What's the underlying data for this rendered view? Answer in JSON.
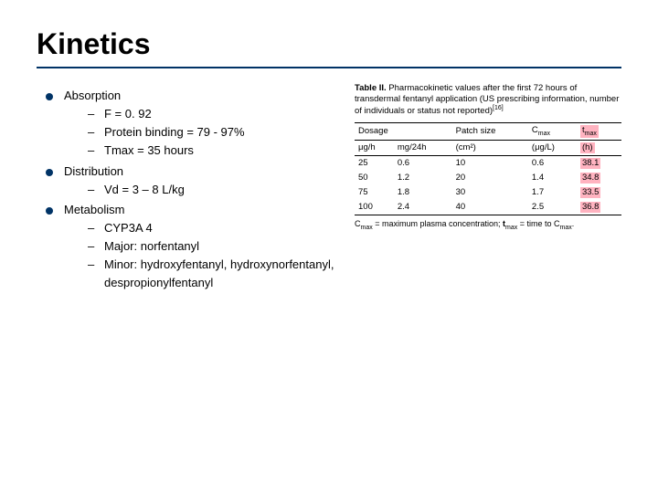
{
  "title": "Kinetics",
  "bullets": {
    "absorption": {
      "label": "Absorption",
      "items": [
        "F = 0. 92",
        "Protein binding = 79 - 97%",
        "Tmax = 35 hours"
      ]
    },
    "distribution": {
      "label": "Distribution",
      "items": [
        "Vd = 3 – 8 L/kg"
      ]
    },
    "metabolism": {
      "label": "Metabolism",
      "items": [
        "CYP3A 4",
        "Major: norfentanyl",
        "Minor: hydroxyfentanyl, hydroxynorfentanyl, despropionylfentanyl"
      ]
    }
  },
  "table": {
    "caption_bold": "Table II.",
    "caption_rest": " Pharmacokinetic values after the first 72 hours of transdermal fentanyl application (US prescribing information, number of individuals or status not reported)",
    "cite": "[16]",
    "headers": {
      "dosage": "Dosage",
      "dosage_u1": "μg/h",
      "dosage_u2": "mg/24h",
      "patch": "Patch size",
      "patch_u": "(cm²)",
      "cmax": "Cmax",
      "cmax_u": "(μg/L)",
      "tmax": "tmax",
      "tmax_u": "(h)"
    },
    "rows": [
      {
        "ugh": "25",
        "mg24": "0.6",
        "size": "10",
        "cmax": "0.6",
        "tmax": "38.1"
      },
      {
        "ugh": "50",
        "mg24": "1.2",
        "size": "20",
        "cmax": "1.4",
        "tmax": "34.8"
      },
      {
        "ugh": "75",
        "mg24": "1.8",
        "size": "30",
        "cmax": "1.7",
        "tmax": "33.5"
      },
      {
        "ugh": "100",
        "mg24": "2.4",
        "size": "40",
        "cmax": "2.5",
        "tmax": "36.8"
      }
    ],
    "footnote_pre": "C",
    "footnote_sub1": "max",
    "footnote_mid1": " = maximum plasma concentration; ",
    "footnote_t": "t",
    "footnote_sub2": "max",
    "footnote_end": " = time to Cmax.",
    "colors": {
      "rule": "#003366",
      "highlight": "#ffb3c0",
      "text": "#000000",
      "bg": "#ffffff"
    }
  }
}
